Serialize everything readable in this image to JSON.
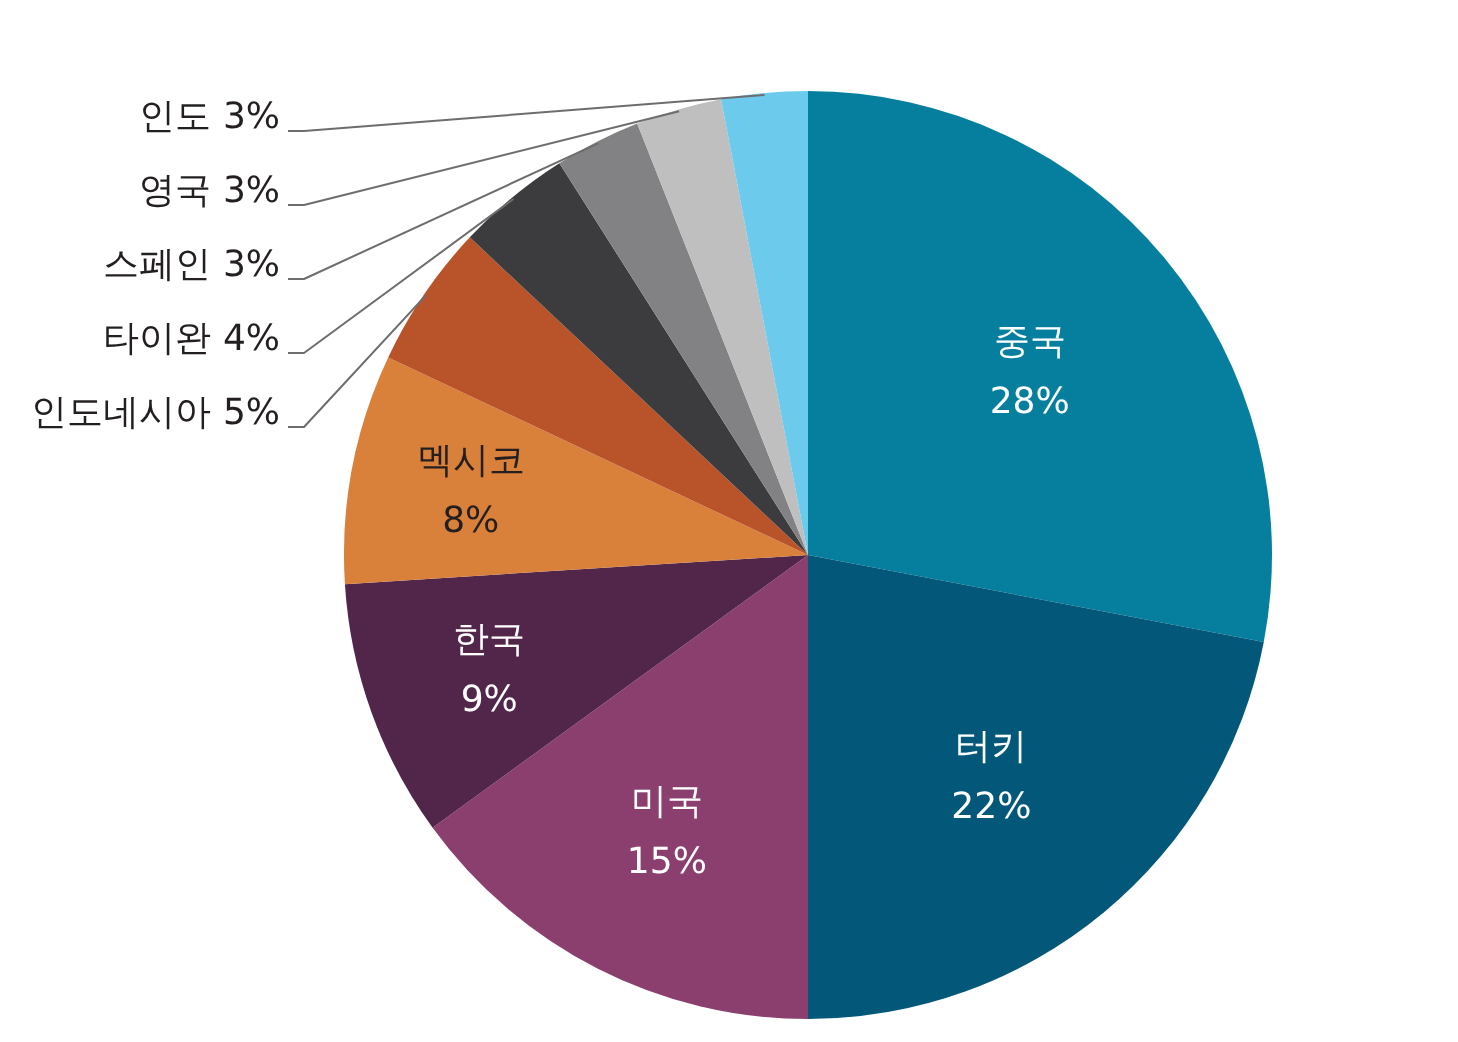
{
  "chart_data": {
    "type": "pie",
    "categories": [
      "중국",
      "터키",
      "미국",
      "한국",
      "멕시코",
      "인도네시아",
      "타이완",
      "스페인",
      "영국",
      "인도"
    ],
    "values": [
      28,
      22,
      15,
      9,
      8,
      5,
      4,
      3,
      3,
      3
    ],
    "colors": [
      "#067f9f",
      "#03587a",
      "#8a3f6e",
      "#52264a",
      "#d9803a",
      "#b9532a",
      "#3c3c3e",
      "#828284",
      "#bfbfbf",
      "#6ccbec"
    ],
    "value_labels": [
      "28%",
      "22%",
      "15%",
      "9%",
      "8%",
      "5%",
      "4%",
      "3%",
      "3%",
      "3%"
    ]
  }
}
